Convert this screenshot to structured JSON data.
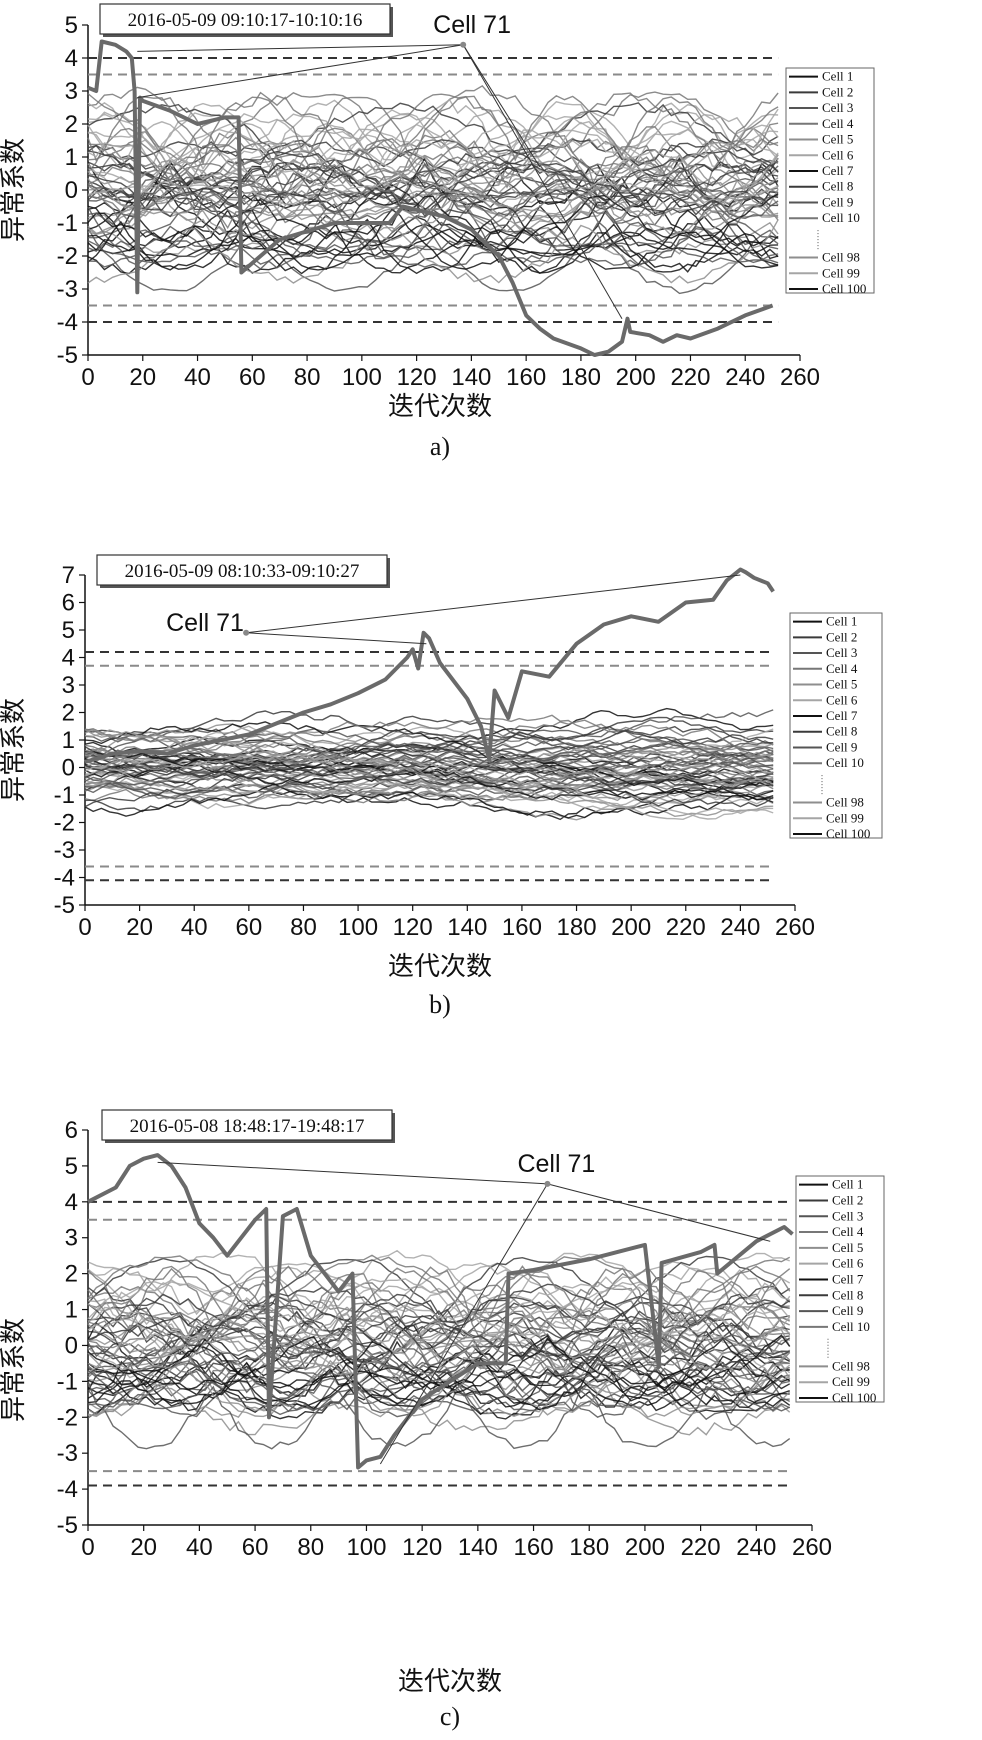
{
  "colors": {
    "threshold_dark": "#333333",
    "threshold_light": "#8a8a8a",
    "highlight": "#6a6a6a",
    "cell_palette": [
      "#111111",
      "#3a3a3a",
      "#555555",
      "#777777",
      "#8e8e8e",
      "#a5a5a5"
    ]
  },
  "chart_data": [
    {
      "type": "line",
      "caption": "a)",
      "timestamp": "2016-05-09 09:10:17-10:10:16",
      "xlabel": "迭代次数",
      "ylabel": "异常系数",
      "xlim": [
        0,
        260
      ],
      "ylim": [
        -5,
        5
      ],
      "xticks": [
        0,
        20,
        40,
        60,
        80,
        100,
        120,
        140,
        160,
        180,
        200,
        220,
        240,
        260
      ],
      "yticks": [
        -5,
        -4,
        -3,
        -2,
        -1,
        0,
        1,
        2,
        3,
        4,
        5
      ],
      "thresholds": [
        4.0,
        3.5,
        -3.5,
        -4.0
      ],
      "legend": [
        "Cell 1",
        "Cell 2",
        "Cell 3",
        "Cell 4",
        "Cell 5",
        "Cell 6",
        "Cell 7",
        "Cell 8",
        "Cell 9",
        "Cell 10",
        "Cell 98",
        "Cell 99",
        "Cell 100"
      ],
      "annotation": {
        "text": "Cell 71",
        "anchor": [
          137,
          4.4
        ],
        "targets": [
          [
            18,
            4.2
          ],
          [
            18,
            2.8
          ],
          [
            165,
            0.7
          ],
          [
            195,
            -3.9
          ]
        ]
      },
      "series": [
        {
          "name": "Cell 71",
          "highlight": true,
          "x": [
            0,
            3,
            5,
            10,
            14,
            16,
            17,
            18,
            19,
            20,
            30,
            40,
            50,
            55,
            56,
            70,
            90,
            110,
            115,
            130,
            140,
            150,
            155,
            160,
            165,
            170,
            180,
            185,
            190,
            195,
            197,
            198,
            205,
            210,
            215,
            220,
            230,
            240,
            250
          ],
          "y": [
            3.1,
            3.0,
            4.5,
            4.4,
            4.2,
            4.0,
            3.0,
            -3.1,
            2.8,
            2.7,
            2.4,
            2.0,
            2.2,
            2.2,
            -2.5,
            -1.5,
            -1.0,
            -1.0,
            -0.5,
            -0.8,
            -1.2,
            -2.0,
            -2.8,
            -3.8,
            -4.2,
            -4.5,
            -4.8,
            -5.0,
            -4.9,
            -4.6,
            -3.9,
            -4.3,
            -4.4,
            -4.6,
            -4.4,
            -4.5,
            -4.2,
            -3.8,
            -3.5
          ]
        }
      ],
      "bundle": {
        "count": 60,
        "seed": 11,
        "spread": 1.2,
        "arcs": true
      }
    },
    {
      "type": "line",
      "caption": "b)",
      "timestamp": "2016-05-09 08:10:33-09:10:27",
      "xlabel": "迭代次数",
      "ylabel": "异常系数",
      "xlim": [
        0,
        260
      ],
      "ylim": [
        -5,
        7
      ],
      "xticks": [
        0,
        20,
        40,
        60,
        80,
        100,
        120,
        140,
        160,
        180,
        200,
        220,
        240,
        260
      ],
      "yticks": [
        -5,
        -4,
        -3,
        -2,
        -1,
        0,
        1,
        2,
        3,
        4,
        5,
        6,
        7
      ],
      "thresholds": [
        4.2,
        3.7,
        -3.6,
        -4.1
      ],
      "legend": [
        "Cell 1",
        "Cell 2",
        "Cell 3",
        "Cell 4",
        "Cell 5",
        "Cell 6",
        "Cell 7",
        "Cell 8",
        "Cell 9",
        "Cell 10",
        "Cell 98",
        "Cell 99",
        "Cell 100"
      ],
      "annotation": {
        "text": "Cell 71",
        "anchor": [
          59,
          4.9
        ],
        "targets": [
          [
            240,
            7.0
          ],
          [
            125,
            4.5
          ]
        ]
      },
      "series": [
        {
          "name": "Cell 71",
          "highlight": true,
          "x": [
            0,
            10,
            20,
            30,
            40,
            50,
            60,
            70,
            80,
            90,
            100,
            110,
            118,
            120,
            122,
            124,
            126,
            130,
            140,
            145,
            148,
            150,
            155,
            160,
            170,
            180,
            190,
            200,
            210,
            220,
            230,
            235,
            240,
            242,
            245,
            250,
            252
          ],
          "y": [
            0.2,
            0.5,
            0.6,
            0.5,
            0.8,
            1.0,
            1.2,
            1.6,
            2.0,
            2.3,
            2.7,
            3.2,
            4.0,
            4.3,
            3.6,
            4.9,
            4.7,
            3.8,
            2.5,
            1.5,
            0.3,
            2.8,
            1.8,
            3.5,
            3.3,
            4.5,
            5.2,
            5.5,
            5.3,
            6.0,
            6.1,
            6.8,
            7.2,
            7.1,
            6.9,
            6.7,
            6.4
          ]
        }
      ],
      "bundle": {
        "count": 60,
        "seed": 23,
        "spread": 1.0,
        "arcs": false
      }
    },
    {
      "type": "line",
      "caption": "c)",
      "timestamp": "2016-05-08 18:48:17-19:48:17",
      "xlabel": "迭代次数",
      "ylabel": "异常系数",
      "xlim": [
        0,
        260
      ],
      "ylim": [
        -5,
        6
      ],
      "xticks": [
        0,
        20,
        40,
        60,
        80,
        100,
        120,
        140,
        160,
        180,
        200,
        220,
        240,
        260
      ],
      "yticks": [
        -5,
        -4,
        -3,
        -2,
        -1,
        0,
        1,
        2,
        3,
        4,
        5,
        6
      ],
      "thresholds": [
        4.0,
        3.5,
        -3.5,
        -3.9
      ],
      "legend": [
        "Cell 1",
        "Cell 2",
        "Cell 3",
        "Cell 4",
        "Cell 5",
        "Cell 6",
        "Cell 7",
        "Cell 8",
        "Cell 9",
        "Cell 10",
        "Cell 98",
        "Cell 99",
        "Cell 100"
      ],
      "annotation": {
        "text": "Cell 71",
        "anchor": [
          165,
          4.5
        ],
        "targets": [
          [
            25,
            5.1
          ],
          [
            245,
            2.9
          ],
          [
            105,
            -3.3
          ]
        ]
      },
      "series": [
        {
          "name": "Cell 71",
          "highlight": true,
          "x": [
            0,
            10,
            15,
            20,
            25,
            30,
            35,
            40,
            45,
            50,
            55,
            60,
            64,
            65,
            70,
            75,
            80,
            90,
            95,
            97,
            100,
            105,
            110,
            120,
            140,
            150,
            151,
            160,
            180,
            200,
            205,
            206,
            220,
            225,
            226,
            240,
            250,
            253
          ],
          "y": [
            4.0,
            4.4,
            5.0,
            5.2,
            5.3,
            5.0,
            4.4,
            3.4,
            3.0,
            2.5,
            3.0,
            3.5,
            3.8,
            -2.0,
            3.6,
            3.8,
            2.5,
            1.5,
            2.0,
            -3.4,
            -3.2,
            -3.1,
            -2.5,
            -1.5,
            -0.5,
            -0.5,
            2.0,
            2.1,
            2.4,
            2.8,
            -0.6,
            2.3,
            2.6,
            2.8,
            2.0,
            2.9,
            3.3,
            3.1
          ]
        }
      ],
      "bundle": {
        "count": 60,
        "seed": 37,
        "spread": 1.1,
        "arcs": true
      }
    }
  ]
}
